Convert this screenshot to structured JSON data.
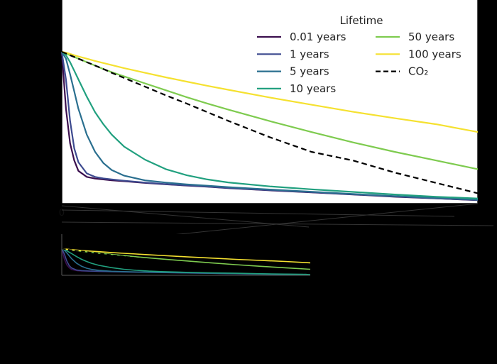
{
  "chart_data": [
    {
      "type": "line",
      "title": "",
      "xlabel": "",
      "ylabel": "",
      "xlim": [
        0,
        100
      ],
      "ylim": [
        0,
        1.18
      ],
      "grid": false,
      "legend": {
        "title": "Lifetime",
        "placement": "top-right",
        "ncol": 2
      },
      "x_tick_labels": [
        "0",
        "",
        "",
        "",
        "",
        ""
      ],
      "x": [
        0,
        1,
        2,
        3,
        4,
        6,
        8,
        10,
        12,
        15,
        20,
        25,
        30,
        35,
        40,
        50,
        60,
        70,
        80,
        90,
        100
      ],
      "series": [
        {
          "name": "0.01 years",
          "color": "#3b0f4e",
          "style": "solid",
          "values": [
            0.88,
            0.55,
            0.35,
            0.25,
            0.19,
            0.155,
            0.145,
            0.14,
            0.135,
            0.13,
            0.12,
            0.112,
            0.105,
            0.098,
            0.09,
            0.077,
            0.065,
            0.053,
            0.04,
            0.03,
            0.02
          ]
        },
        {
          "name": "1 years",
          "color": "#3d4a8f",
          "style": "solid",
          "values": [
            0.88,
            0.72,
            0.48,
            0.32,
            0.24,
            0.175,
            0.155,
            0.146,
            0.14,
            0.133,
            0.122,
            0.113,
            0.106,
            0.099,
            0.091,
            0.078,
            0.066,
            0.054,
            0.042,
            0.031,
            0.021
          ]
        },
        {
          "name": "5 years",
          "color": "#2a6f8f",
          "style": "solid",
          "values": [
            0.88,
            0.84,
            0.75,
            0.65,
            0.55,
            0.4,
            0.3,
            0.235,
            0.195,
            0.162,
            0.135,
            0.122,
            0.112,
            0.104,
            0.096,
            0.082,
            0.069,
            0.056,
            0.044,
            0.033,
            0.023
          ]
        },
        {
          "name": "10 years",
          "color": "#21a07f",
          "style": "solid",
          "values": [
            0.88,
            0.86,
            0.82,
            0.77,
            0.72,
            0.62,
            0.53,
            0.46,
            0.4,
            0.33,
            0.255,
            0.2,
            0.165,
            0.14,
            0.123,
            0.1,
            0.083,
            0.068,
            0.053,
            0.04,
            0.03
          ]
        },
        {
          "name": "50 years",
          "color": "#7ecb4f",
          "style": "solid",
          "values": [
            0.88,
            0.87,
            0.86,
            0.85,
            0.84,
            0.82,
            0.8,
            0.78,
            0.762,
            0.737,
            0.697,
            0.657,
            0.617,
            0.58,
            0.545,
            0.478,
            0.415,
            0.355,
            0.3,
            0.25,
            0.2
          ]
        },
        {
          "name": "100 years",
          "color": "#f5e130",
          "style": "solid",
          "values": [
            0.88,
            0.875,
            0.868,
            0.86,
            0.853,
            0.84,
            0.827,
            0.815,
            0.803,
            0.785,
            0.758,
            0.732,
            0.707,
            0.683,
            0.66,
            0.615,
            0.573,
            0.532,
            0.495,
            0.46,
            0.415
          ]
        },
        {
          "name": "CO₂",
          "color": "#000000",
          "style": "dashed",
          "values": [
            0.88,
            0.87,
            0.86,
            0.85,
            0.84,
            0.82,
            0.8,
            0.78,
            0.758,
            0.728,
            0.678,
            0.628,
            0.58,
            0.53,
            0.48,
            0.385,
            0.3,
            0.25,
            0.18,
            0.12,
            0.06
          ]
        }
      ]
    },
    {
      "type": "line",
      "title": "",
      "xlabel": "",
      "ylabel": "",
      "note": "small inset replica of the main chart",
      "xlim": [
        0,
        100
      ],
      "ylim": [
        0,
        1.18
      ],
      "series_ref": "same as chart 1"
    }
  ]
}
